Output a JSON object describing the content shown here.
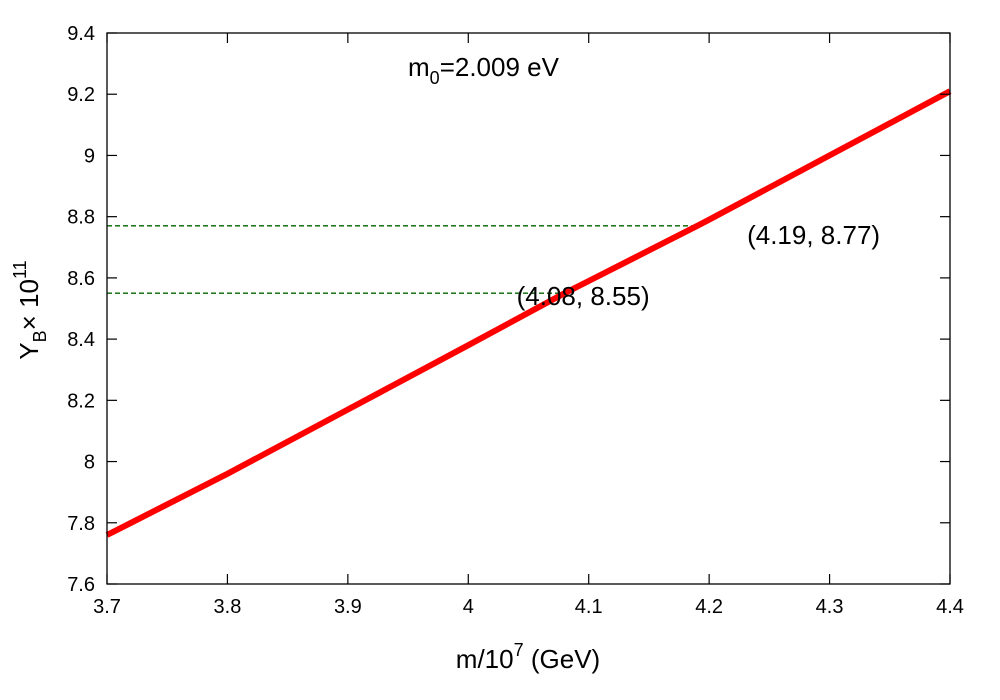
{
  "chart_data": {
    "type": "line",
    "title": {
      "main": "m",
      "sub": "0",
      "rest": "=2.009 eV"
    },
    "xlabel": {
      "pre": "m/10",
      "sup": "7",
      "post": " (GeV)"
    },
    "ylabel": {
      "main": "Y",
      "sub": "B",
      "mid": "× 10",
      "sup": "11"
    },
    "xlim": [
      3.7,
      4.4
    ],
    "ylim": [
      7.6,
      9.4
    ],
    "xticks": [
      "3.7",
      "3.8",
      "3.9",
      "4",
      "4.1",
      "4.2",
      "4.3",
      "4.4"
    ],
    "yticks": [
      "7.6",
      "7.8",
      "8",
      "8.2",
      "8.4",
      "8.6",
      "8.8",
      "9",
      "9.2",
      "9.4"
    ],
    "grid": false,
    "series": [
      {
        "color": "#ff0000",
        "x": [
          3.7,
          3.8,
          3.9,
          4.0,
          4.08,
          4.1,
          4.19,
          4.2,
          4.3,
          4.4
        ],
        "y": [
          7.76,
          7.96,
          8.17,
          8.38,
          8.55,
          8.59,
          8.77,
          8.79,
          9.0,
          9.21
        ]
      }
    ],
    "reference_lines": [
      {
        "x": 4.19,
        "y": 8.77,
        "label": "(4.19, 8.77)",
        "color": "#006400"
      },
      {
        "x": 4.08,
        "y": 8.55,
        "label": "(4.08, 8.55)",
        "color": "#006400"
      }
    ]
  }
}
